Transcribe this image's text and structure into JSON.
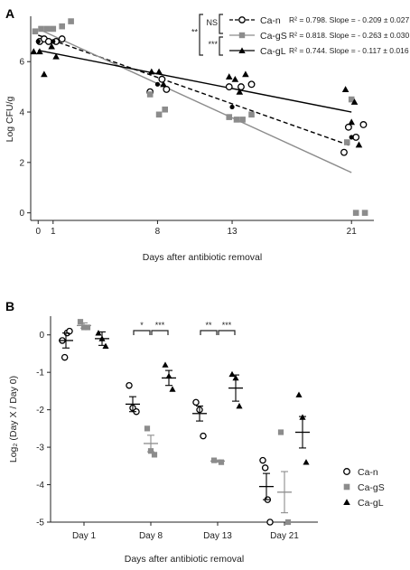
{
  "panels": {
    "a": "A",
    "b": "B"
  },
  "chart_data": [
    {
      "type": "scatter",
      "panel": "A",
      "xlabel": "Days after antibiotic removal",
      "ylabel": "Log CFU/g",
      "xlim": [
        -0.5,
        22.5
      ],
      "ylim": [
        -0.3,
        7.8
      ],
      "xticks": [
        0,
        1,
        8,
        13,
        21
      ],
      "yticks": [
        0,
        2,
        4,
        6
      ],
      "series": [
        {
          "name": "Ca-n",
          "marker": "open-circle",
          "line": "dashed",
          "color": "#000000",
          "points": [
            [
              0.1,
              6.8
            ],
            [
              0.4,
              6.9
            ],
            [
              0.7,
              6.8
            ],
            [
              1.2,
              6.8
            ],
            [
              1.6,
              6.9
            ],
            [
              7.5,
              4.8
            ],
            [
              8.3,
              5.3
            ],
            [
              8.6,
              4.9
            ],
            [
              12.8,
              5.0
            ],
            [
              13.6,
              5.0
            ],
            [
              14.3,
              5.1
            ],
            [
              20.5,
              2.4
            ],
            [
              20.8,
              3.4
            ],
            [
              21.3,
              3.0
            ],
            [
              21.8,
              3.5
            ]
          ],
          "means": [
            [
              0,
              6.8
            ],
            [
              1,
              6.8
            ],
            [
              8,
              5.1
            ],
            [
              13,
              4.2
            ],
            [
              21,
              3.0
            ]
          ],
          "stat": "R² = 0.798. Slope = - 0.209 ± 0.027",
          "fit": [
            [
              0,
              7.05
            ],
            [
              21,
              2.65
            ]
          ]
        },
        {
          "name": "Ca-gS",
          "marker": "filled-square",
          "line": "solid",
          "color": "#8c8c8c",
          "points": [
            [
              -0.2,
              7.2
            ],
            [
              0.2,
              7.3
            ],
            [
              0.6,
              7.3
            ],
            [
              1.0,
              7.3
            ],
            [
              1.6,
              7.4
            ],
            [
              2.2,
              7.6
            ],
            [
              7.5,
              4.7
            ],
            [
              8.1,
              3.9
            ],
            [
              8.5,
              4.1
            ],
            [
              12.8,
              3.8
            ],
            [
              13.3,
              3.7
            ],
            [
              13.7,
              3.7
            ],
            [
              14.3,
              3.9
            ],
            [
              20.7,
              2.8
            ],
            [
              21.0,
              4.5
            ],
            [
              21.3,
              0.0
            ],
            [
              21.9,
              0.0
            ]
          ],
          "stat": "R² = 0.818. Slope = - 0.263 ± 0.030",
          "fit": [
            [
              0,
              7.3
            ],
            [
              21,
              1.6
            ]
          ]
        },
        {
          "name": "Ca-gL",
          "marker": "filled-triangle",
          "line": "solid",
          "color": "#000000",
          "points": [
            [
              -0.3,
              6.4
            ],
            [
              0.1,
              6.4
            ],
            [
              0.4,
              5.5
            ],
            [
              0.9,
              6.6
            ],
            [
              1.2,
              6.2
            ],
            [
              7.6,
              5.6
            ],
            [
              8.1,
              5.6
            ],
            [
              8.4,
              5.1
            ],
            [
              12.8,
              5.4
            ],
            [
              13.2,
              5.3
            ],
            [
              13.5,
              4.8
            ],
            [
              13.9,
              5.5
            ],
            [
              20.6,
              4.9
            ],
            [
              21.0,
              3.6
            ],
            [
              21.2,
              4.4
            ],
            [
              21.5,
              2.7
            ]
          ],
          "stat": "R² = 0.744. Slope = - 0.117 ± 0.016",
          "fit": [
            [
              0,
              6.45
            ],
            [
              21,
              4.0
            ]
          ]
        }
      ],
      "significance": [
        {
          "between": [
            "Ca-n",
            "Ca-gS"
          ],
          "label": "NS"
        },
        {
          "between": [
            "Ca-gS",
            "Ca-gL"
          ],
          "label": "***"
        },
        {
          "between": [
            "Ca-n",
            "Ca-gL"
          ],
          "label": "**"
        }
      ]
    },
    {
      "type": "scatter",
      "panel": "B",
      "xlabel": "Days after antibiotic removal",
      "ylabel": "Log₂ (Day X / Day 0)",
      "ylim": [
        -5,
        0.5
      ],
      "yticks": [
        0,
        -1,
        -2,
        -3,
        -4,
        -5
      ],
      "categories": [
        "Day 1",
        "Day 8",
        "Day 13",
        "Day 21"
      ],
      "legend_position": "right",
      "series": [
        {
          "name": "Ca-n",
          "marker": "open-circle",
          "color": "#000000",
          "points": [
            [
              0,
              -0.15
            ],
            [
              0,
              -0.6
            ],
            [
              0,
              0.05
            ],
            [
              0,
              0.1
            ],
            [
              1,
              -1.35
            ],
            [
              1,
              -1.95
            ],
            [
              1,
              -2.05
            ],
            [
              2,
              -1.8
            ],
            [
              2,
              -2.0
            ],
            [
              2,
              -2.7
            ],
            [
              3,
              -3.35
            ],
            [
              3,
              -3.55
            ],
            [
              3,
              -4.4
            ],
            [
              3,
              -5.0
            ]
          ],
          "mean": [
            -0.15,
            -1.85,
            -2.1,
            -4.05
          ],
          "sem": [
            0.2,
            0.2,
            0.2,
            0.35
          ]
        },
        {
          "name": "Ca-gS",
          "marker": "filled-square",
          "color": "#8c8c8c",
          "points": [
            [
              0,
              0.35
            ],
            [
              0,
              0.2
            ],
            [
              0,
              0.2
            ],
            [
              1,
              -2.5
            ],
            [
              1,
              -3.1
            ],
            [
              1,
              -3.2
            ],
            [
              2,
              -3.35
            ],
            [
              2,
              -3.4
            ],
            [
              3,
              -2.6
            ],
            [
              3,
              -5.0
            ]
          ],
          "mean": [
            0.25,
            -2.9,
            -3.37,
            -4.2
          ],
          "sem": [
            0.07,
            0.22,
            0.03,
            0.55
          ]
        },
        {
          "name": "Ca-gL",
          "marker": "filled-triangle",
          "color": "#000000",
          "points": [
            [
              0,
              0.05
            ],
            [
              0,
              -0.1
            ],
            [
              0,
              -0.3
            ],
            [
              1,
              -0.8
            ],
            [
              1,
              -1.1
            ],
            [
              1,
              -1.45
            ],
            [
              2,
              -1.05
            ],
            [
              2,
              -1.15
            ],
            [
              2,
              -1.9
            ],
            [
              3,
              -1.6
            ],
            [
              3,
              -2.2
            ],
            [
              3,
              -3.4
            ]
          ],
          "mean": [
            -0.1,
            -1.15,
            -1.42,
            -2.6
          ],
          "sem": [
            0.18,
            0.2,
            0.35,
            0.42
          ]
        }
      ],
      "significance": [
        {
          "category": "Day 8",
          "between": [
            "Ca-n",
            "Ca-gS"
          ],
          "label": "*"
        },
        {
          "category": "Day 8",
          "between": [
            "Ca-gS",
            "Ca-gL"
          ],
          "label": "***"
        },
        {
          "category": "Day 13",
          "between": [
            "Ca-n",
            "Ca-gS"
          ],
          "label": "**"
        },
        {
          "category": "Day 13",
          "between": [
            "Ca-gS",
            "Ca-gL"
          ],
          "label": "***"
        }
      ]
    }
  ]
}
